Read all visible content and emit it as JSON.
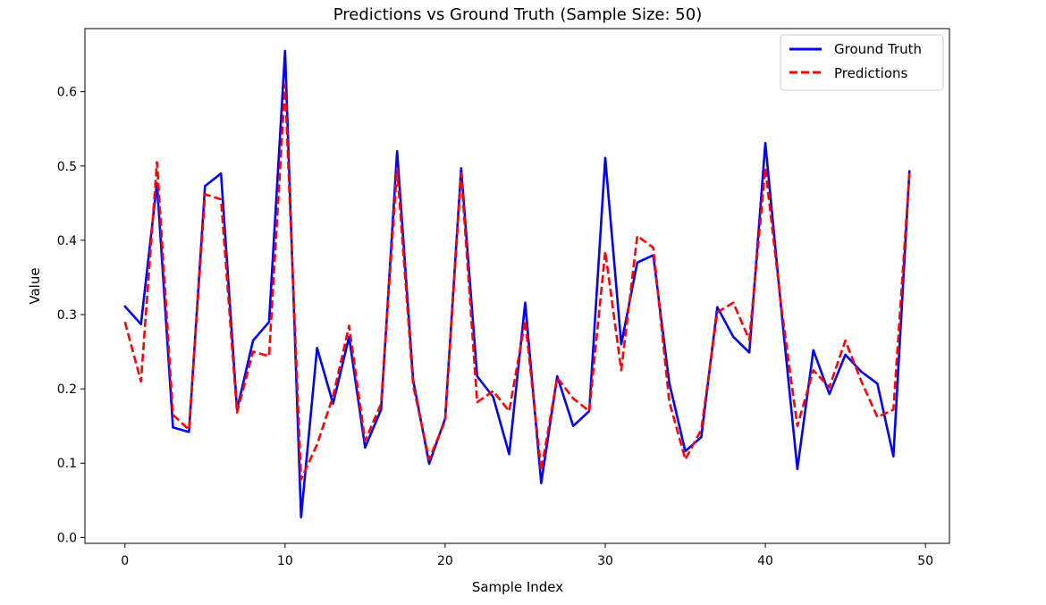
{
  "chart_data": {
    "type": "line",
    "title": "Predictions vs Ground Truth (Sample Size: 50)",
    "xlabel": "Sample Index",
    "ylabel": "Value",
    "xlim": [
      -2.5,
      51.5
    ],
    "ylim": [
      -0.008,
      0.685
    ],
    "xticks": [
      0,
      10,
      20,
      30,
      40,
      50
    ],
    "yticks": [
      0.0,
      0.1,
      0.2,
      0.3,
      0.4,
      0.5,
      0.6
    ],
    "ytick_labels": [
      "0.0",
      "0.1",
      "0.2",
      "0.3",
      "0.4",
      "0.5",
      "0.6"
    ],
    "legend_position": "top-right",
    "x": [
      0,
      1,
      2,
      3,
      4,
      5,
      6,
      7,
      8,
      9,
      10,
      11,
      12,
      13,
      14,
      15,
      16,
      17,
      18,
      19,
      20,
      21,
      22,
      23,
      24,
      25,
      26,
      27,
      28,
      29,
      30,
      31,
      32,
      33,
      34,
      35,
      36,
      37,
      38,
      39,
      40,
      41,
      42,
      43,
      44,
      45,
      46,
      47,
      48,
      49
    ],
    "series": [
      {
        "name": "Ground Truth",
        "color": "#0000ff",
        "style": "solid",
        "values": [
          0.311,
          0.287,
          0.477,
          0.148,
          0.142,
          0.473,
          0.49,
          0.172,
          0.265,
          0.29,
          0.655,
          0.027,
          0.255,
          0.18,
          0.27,
          0.121,
          0.172,
          0.52,
          0.212,
          0.099,
          0.16,
          0.497,
          0.217,
          0.189,
          0.112,
          0.316,
          0.073,
          0.217,
          0.15,
          0.17,
          0.511,
          0.26,
          0.37,
          0.38,
          0.208,
          0.116,
          0.135,
          0.31,
          0.27,
          0.249,
          0.531,
          0.306,
          0.092,
          0.252,
          0.193,
          0.246,
          0.223,
          0.207,
          0.109,
          0.493
        ]
      },
      {
        "name": "Predictions",
        "color": "#ff0000",
        "style": "dashed",
        "values": [
          0.29,
          0.21,
          0.505,
          0.165,
          0.145,
          0.462,
          0.455,
          0.168,
          0.25,
          0.244,
          0.61,
          0.078,
          0.125,
          0.19,
          0.285,
          0.13,
          0.18,
          0.497,
          0.205,
          0.105,
          0.157,
          0.49,
          0.182,
          0.197,
          0.17,
          0.292,
          0.09,
          0.215,
          0.187,
          0.17,
          0.385,
          0.225,
          0.406,
          0.39,
          0.183,
          0.105,
          0.145,
          0.303,
          0.316,
          0.266,
          0.497,
          0.31,
          0.15,
          0.225,
          0.202,
          0.265,
          0.21,
          0.162,
          0.172,
          0.49
        ]
      }
    ]
  }
}
